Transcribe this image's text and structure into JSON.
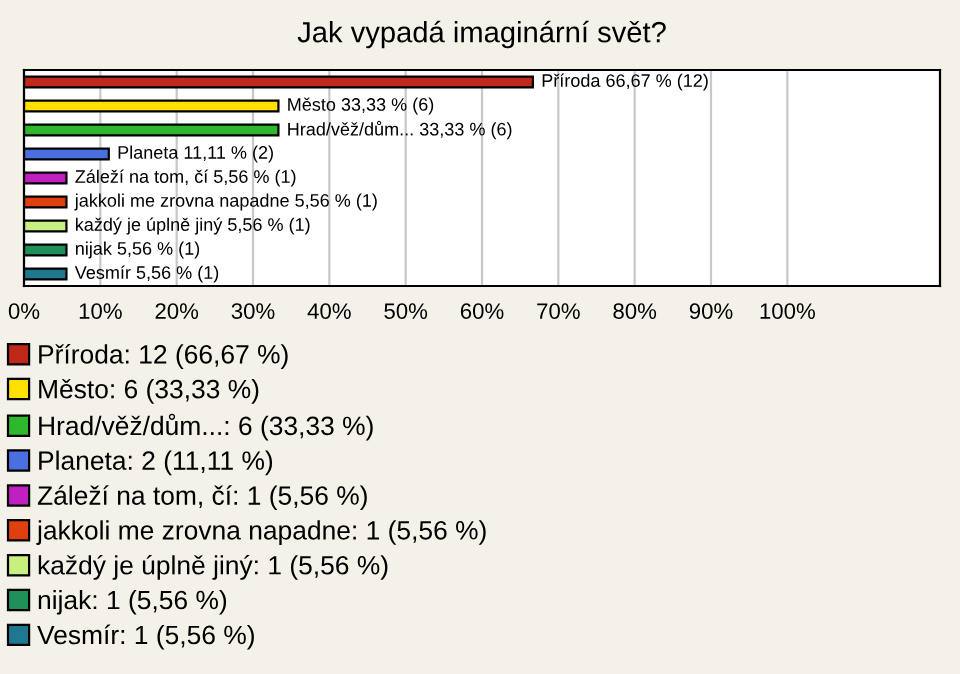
{
  "chart_data": {
    "type": "bar",
    "orientation": "horizontal",
    "title": "Jak vypadá imaginární svět?",
    "categories": [
      null,
      null,
      null,
      null,
      null,
      null,
      null,
      null,
      null
    ],
    "series": [
      {
        "name": "Příroda: 12 (66,67 %)",
        "color": "#c0281a",
        "values": [
          66.67,
          null,
          null,
          null,
          null,
          null,
          null,
          null,
          null
        ],
        "value_labels": [
          "Příroda 66,67 % (12)",
          null,
          null,
          null,
          null,
          null,
          null,
          null,
          null
        ]
      },
      {
        "name": "Město: 6 (33,33 %)",
        "color": "#ffe000",
        "values": [
          null,
          33.33,
          null,
          null,
          null,
          null,
          null,
          null,
          null
        ],
        "value_labels": [
          null,
          "Město 33,33 % (6)",
          null,
          null,
          null,
          null,
          null,
          null,
          null
        ]
      },
      {
        "name": "Hrad/věž/dům...: 6 (33,33 %)",
        "color": "#2db82d",
        "values": [
          null,
          null,
          33.33,
          null,
          null,
          null,
          null,
          null,
          null
        ],
        "value_labels": [
          null,
          null,
          "Hrad/věž/dům... 33,33 % (6)",
          null,
          null,
          null,
          null,
          null,
          null
        ]
      },
      {
        "name": "Planeta: 2 (11,11 %)",
        "color": "#4a6fe0",
        "values": [
          null,
          null,
          null,
          11.11,
          null,
          null,
          null,
          null,
          null
        ],
        "value_labels": [
          null,
          null,
          null,
          "Planeta 11,11 % (2)",
          null,
          null,
          null,
          null,
          null
        ]
      },
      {
        "name": "Záleží na tom, čí: 1 (5,56 %)",
        "color": "#c020c0",
        "values": [
          null,
          null,
          null,
          null,
          5.56,
          null,
          null,
          null,
          null
        ],
        "value_labels": [
          null,
          null,
          null,
          null,
          "Záleží na tom, čí 5,56 % (1)",
          null,
          null,
          null,
          null
        ]
      },
      {
        "name": "jakkoli me zrovna napadne: 1 (5,56 %)",
        "color": "#e04010",
        "values": [
          null,
          null,
          null,
          null,
          null,
          5.56,
          null,
          null,
          null
        ],
        "value_labels": [
          null,
          null,
          null,
          null,
          null,
          "jakkoli me zrovna napadne 5,56 % (1)",
          null,
          null,
          null
        ]
      },
      {
        "name": "každý je úplně jiný: 1 (5,56 %)",
        "color": "#c8f080",
        "values": [
          null,
          null,
          null,
          null,
          null,
          null,
          5.56,
          null,
          null
        ],
        "value_labels": [
          null,
          null,
          null,
          null,
          null,
          null,
          "každý je úplně jiný 5,56 % (1)",
          null,
          null
        ]
      },
      {
        "name": "nijak: 1 (5,56 %)",
        "color": "#20905a",
        "values": [
          null,
          null,
          null,
          null,
          null,
          null,
          null,
          5.56,
          null
        ],
        "value_labels": [
          null,
          null,
          null,
          null,
          null,
          null,
          null,
          "nijak 5,56 % (1)",
          null
        ]
      },
      {
        "name": "Vesmír: 1 (5,56 %)",
        "color": "#207890",
        "values": [
          null,
          null,
          null,
          null,
          null,
          null,
          null,
          null,
          5.56
        ],
        "value_labels": [
          null,
          null,
          null,
          null,
          null,
          null,
          null,
          null,
          "Vesmír 5,56 % (1)"
        ]
      }
    ],
    "xlim": [
      0,
      120
    ],
    "xticks": [
      {
        "value": 0,
        "label": "0%"
      },
      {
        "value": 10,
        "label": "10%"
      },
      {
        "value": 20,
        "label": "20%"
      },
      {
        "value": 30,
        "label": "30%"
      },
      {
        "value": 40,
        "label": "40%"
      },
      {
        "value": 50,
        "label": "50%"
      },
      {
        "value": 60,
        "label": "60%"
      },
      {
        "value": 70,
        "label": "70%"
      },
      {
        "value": 80,
        "label": "80%"
      },
      {
        "value": 90,
        "label": "90%"
      },
      {
        "value": 100,
        "label": "100%"
      }
    ],
    "grid": "x",
    "legend": "bottom"
  }
}
